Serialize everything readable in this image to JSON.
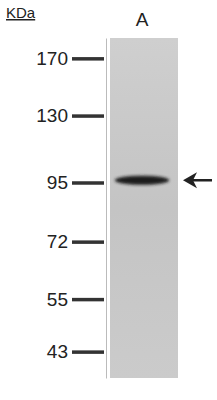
{
  "chart_data": {
    "type": "western_blot",
    "y_label": "KDa",
    "categories": [
      "A"
    ],
    "values": [
      96
    ],
    "color": "#1a1a1a",
    "log": "y",
    "ylim": [
      38,
      187
    ],
    "yticks": [
      43,
      55,
      72,
      95,
      130,
      170
    ],
    "grid": false
  }
}
